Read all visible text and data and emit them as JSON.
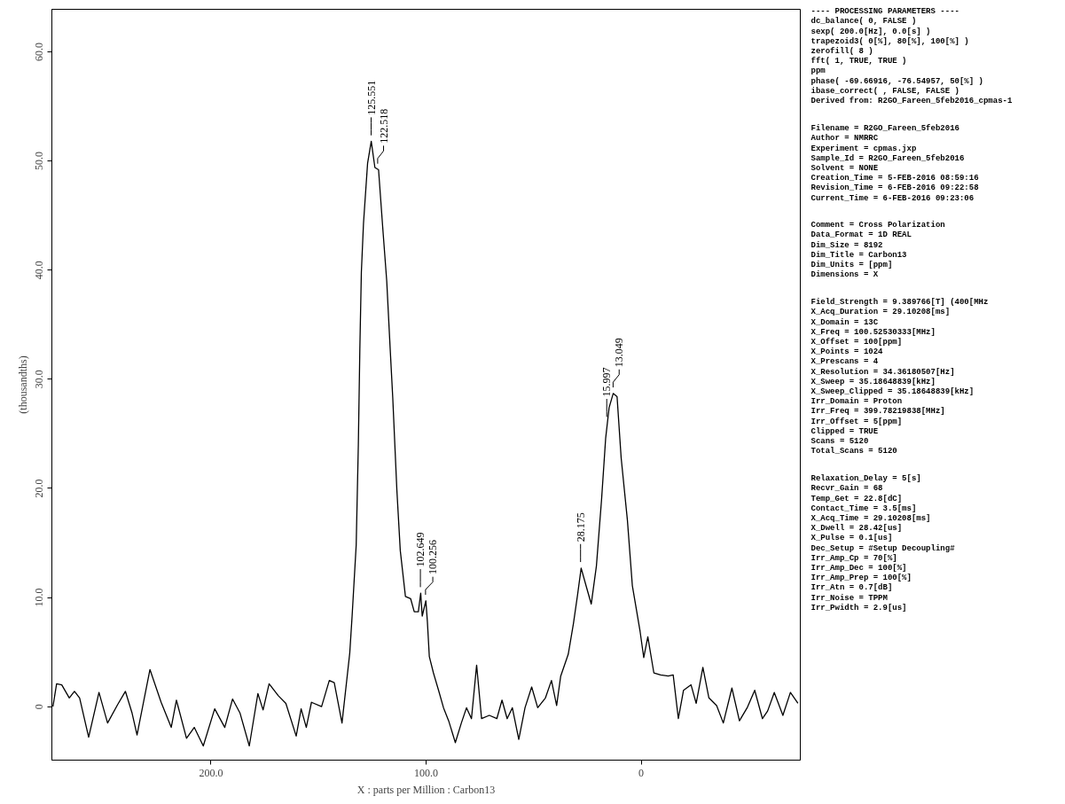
{
  "chart_data": [
    {
      "type": "line",
      "xlabel": "X : parts per Million : Carbon13",
      "ylabel": "(thousandths)",
      "xlim": [
        274,
        -74
      ],
      "ylim": [
        -4.9,
        63.9
      ],
      "xticks": [
        {
          "value": 200,
          "label": "200.0"
        },
        {
          "value": 100,
          "label": "100.0"
        },
        0
      ],
      "yticks": [
        0,
        {
          "value": 10,
          "label": "10.0"
        },
        {
          "value": 20,
          "label": "20.0"
        },
        {
          "value": 30,
          "label": "30.0"
        },
        {
          "value": 40,
          "label": "40.0"
        },
        {
          "value": 50,
          "label": "50.0"
        },
        {
          "value": 60,
          "label": "60.0"
        }
      ],
      "x": [
        273.5,
        271.8,
        269.4,
        265.9,
        263.5,
        261.1,
        256.9,
        252.1,
        248.1,
        243.4,
        239.8,
        236.7,
        234.4,
        228.4,
        223.2,
        218.5,
        216.1,
        211.4,
        207.8,
        203.6,
        198.3,
        193.6,
        190.0,
        186.5,
        182.2,
        178.2,
        175.8,
        173.0,
        168.7,
        165.2,
        160.4,
        158.1,
        155.7,
        153.3,
        148.6,
        145.0,
        142.7,
        139.1,
        135.5,
        134.4,
        132.5,
        131.5,
        130.8,
        130.1,
        129.1,
        127.2,
        125.5,
        123.8,
        122.1,
        120.2,
        118.3,
        116.7,
        115.5,
        113.6,
        112.0,
        109.6,
        107.2,
        105.5,
        103.6,
        102.5,
        101.8,
        100.1,
        99.4,
        98.5,
        96.6,
        94.2,
        91.9,
        89.5,
        86.4,
        83.6,
        81.2,
        78.9,
        76.5,
        74.2,
        70.6,
        67.1,
        64.7,
        62.3,
        59.9,
        56.9,
        54.0,
        50.9,
        48.1,
        44.5,
        41.7,
        39.3,
        37.4,
        33.9,
        31.5,
        29.6,
        27.9,
        25.5,
        23.2,
        20.8,
        18.4,
        16.5,
        14.9,
        13.0,
        11.2,
        9.3,
        6.4,
        4.1,
        0.5,
        -1.2,
        -3.1,
        -5.9,
        -9.0,
        -12.6,
        -14.9,
        -17.3,
        -19.7,
        -23.2,
        -25.6,
        -28.7,
        -31.5,
        -35.1,
        -38.2,
        -42.2,
        -45.7,
        -49.3,
        -52.8,
        -56.4,
        -58.8,
        -61.9,
        -65.9,
        -69.4,
        -72.9
      ],
      "series": [
        {
          "color": "#000000",
          "values": [
            0,
            2.1,
            2.0,
            0.8,
            1.4,
            0.8,
            -2.8,
            1.3,
            -1.5,
            0.2,
            1.4,
            -0.6,
            -2.6,
            3.4,
            0.4,
            -1.9,
            0.6,
            -2.9,
            -1.9,
            -3.6,
            -0.2,
            -1.9,
            0.7,
            -0.6,
            -3.6,
            1.2,
            -0.3,
            2.1,
            1.0,
            0.3,
            -2.7,
            -0.2,
            -1.9,
            0.4,
            0.0,
            2.4,
            2.2,
            -1.5,
            4.9,
            8.3,
            14.8,
            24.0,
            32.8,
            39.8,
            44.3,
            49.8,
            51.8,
            49.4,
            49.2,
            44.0,
            39.0,
            32.8,
            28.3,
            19.9,
            14.3,
            10.1,
            9.9,
            8.7,
            8.7,
            10.4,
            8.3,
            9.7,
            7.8,
            4.6,
            3.1,
            1.5,
            -0.1,
            -1.3,
            -3.3,
            -1.5,
            -0.1,
            -1.1,
            3.8,
            -1.1,
            -0.8,
            -1.1,
            0.6,
            -1.1,
            -0.1,
            -3.0,
            -0.1,
            1.8,
            -0.1,
            0.8,
            2.4,
            0.1,
            2.8,
            4.8,
            7.6,
            10.2,
            12.7,
            11.0,
            9.4,
            12.9,
            19.0,
            24.6,
            27.4,
            28.7,
            28.4,
            22.8,
            17.1,
            11.1,
            6.9,
            4.5,
            6.4,
            3.1,
            2.9,
            2.8,
            2.9,
            -1.1,
            1.5,
            2.0,
            0.3,
            3.6,
            0.8,
            0.1,
            -1.5,
            1.7,
            -1.3,
            -0.1,
            1.5,
            -1.1,
            -0.4,
            1.3,
            -0.8,
            1.3,
            0.3
          ]
        }
      ],
      "annotations": [
        {
          "text": "125.551",
          "x": 125.551,
          "y": 51.8
        },
        {
          "text": "122.518",
          "x": 122.518,
          "y": 49.2
        },
        {
          "text": "102.649",
          "x": 102.649,
          "y": 10.4
        },
        {
          "text": "100.256",
          "x": 100.256,
          "y": 9.7
        },
        {
          "text": "28.175",
          "x": 28.175,
          "y": 12.7
        },
        {
          "text": "15.997",
          "x": 15.997,
          "y": 26
        },
        {
          "text": "13.049",
          "x": 13.049,
          "y": 28.7
        }
      ]
    },
    {
      "type": "other",
      "title": "---- PROCESSING PARAMETERS ----",
      "annotations": [
        "dc_balance( 0, FALSE )",
        "sexp( 200.0[Hz], 0.0[s] )",
        "trapezoid3( 0[%], 80[%], 100[%] )",
        "zerofill( 8 )",
        "fft( 1, TRUE, TRUE )",
        "ppm",
        "phase( -69.66916, -76.54957, 50[%] )",
        "ibase_correct( , FALSE, FALSE )",
        "Derived from: R2GO_Fareen_5feb2016_cpmas-1"
      ]
    },
    {
      "type": "other",
      "annotations": [
        "Filename = R2GO_Fareen_5feb2016",
        "Author = NMRRC",
        "Experiment = cpmas.jxp",
        "Sample_Id = R2GO_Fareen_5feb2016",
        "Solvent = NONE",
        "Creation_Time = 5-FEB-2016 08:59:16",
        "Revision_Time = 6-FEB-2016 09:22:58",
        "Current_Time = 6-FEB-2016 09:23:06"
      ]
    },
    {
      "type": "other",
      "annotations": [
        "Comment = Cross Polarization",
        "Data_Format = 1D REAL",
        "Dim_Size = 8192",
        "Dim_Title = Carbon13",
        "Dim_Units = [ppm]",
        "Dimensions = X"
      ]
    },
    {
      "type": "other",
      "annotations": [
        "Field_Strength = 9.389766[T] (400[MHz",
        "X_Acq_Duration = 29.10208[ms]",
        "X_Domain = 13C",
        "X_Freq = 100.52530333[MHz]",
        "X_Offset = 100[ppm]",
        "X_Points = 1024",
        "X_Prescans = 4",
        "X_Resolution = 34.36180507[Hz]",
        "X_Sweep = 35.18648839[kHz]",
        "X_Sweep_Clipped = 35.18648839[kHz]",
        "Irr_Domain = Proton",
        "Irr_Freq = 399.78219838[MHz]",
        "Irr_Offset = 5[ppm]",
        "Clipped = TRUE",
        "Scans = 5120",
        "Total_Scans = 5120"
      ]
    },
    {
      "type": "other",
      "annotations": [
        "Relaxation_Delay = 5[s]",
        "Recvr_Gain = 68",
        "Temp_Get = 22.8[dC]",
        "Contact_Time = 3.5[ms]",
        "X_Acq_Time = 29.10208[ms]",
        "X_Dwell = 28.42[us]",
        "X_Pulse = 0.1[us]",
        "Dec_Setup = #Setup Decoupling#",
        "Irr_Amp_Cp = 70[%]",
        "Irr_Amp_Dec = 100[%]",
        "Irr_Amp_Prep = 100[%]",
        "Irr_Atn = 0.7[dB]",
        "Irr_Noise = TPPM",
        "Irr_Pwidth = 2.9[us]"
      ]
    }
  ]
}
